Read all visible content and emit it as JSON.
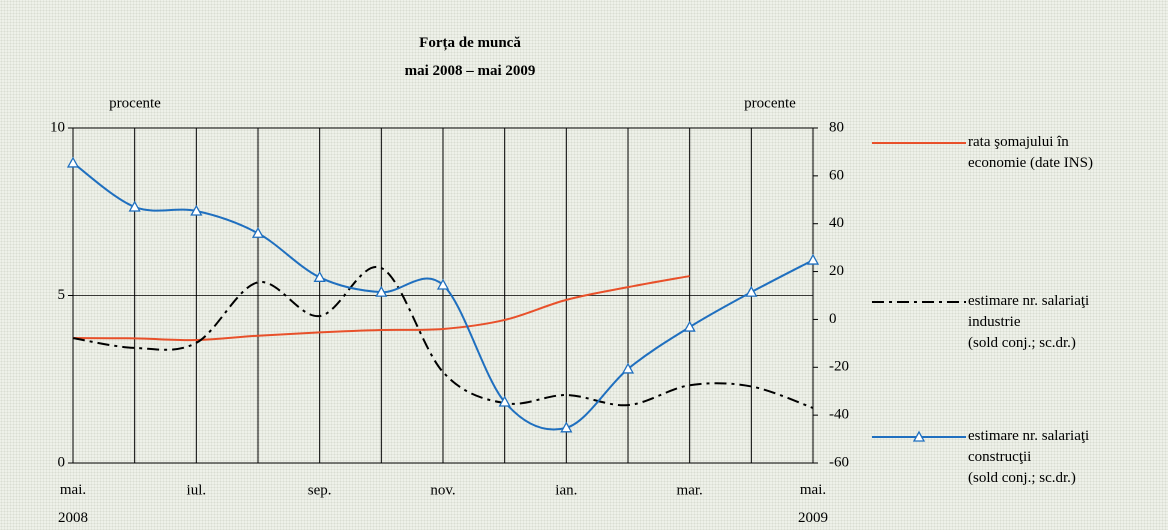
{
  "chart_data": {
    "type": "line",
    "title": "Forța de muncă\nmai 2008 – mai 2009",
    "ylabel": "procente",
    "y2label": "procente",
    "categories": [
      "mai.\n2008",
      null,
      "iul.",
      null,
      "sep.",
      null,
      "nov.",
      null,
      "ian.",
      null,
      "mar.",
      null,
      "mai.\n2009"
    ],
    "ylim": [
      0,
      10
    ],
    "yticks": [
      0,
      5,
      10
    ],
    "y2lim": [
      -60,
      80
    ],
    "y2ticks": [
      -60,
      -40,
      -20,
      0,
      20,
      40,
      60,
      80
    ],
    "grid": true,
    "series": [
      {
        "name": "rata şomajului în\neconomie (date INS)",
        "color": "#e8502a",
        "style": "solid",
        "values": [
          3.73,
          3.72,
          3.67,
          3.8,
          3.9,
          3.97,
          4.0,
          4.27,
          4.87,
          5.25,
          5.58,
          null,
          null
        ]
      },
      {
        "name": "estimare nr. salariaţi\nindustrie\n(sold conj.; sc.dr.)",
        "color": "#000000",
        "style": "dashdot",
        "axis": "y2",
        "values": [
          -7.8,
          -11.9,
          -9.8,
          15.5,
          1.4,
          21.5,
          -22,
          -35,
          -31.6,
          -35.8,
          -27.5,
          -28,
          -37
        ]
      },
      {
        "name": "estimare nr. salariaţi\nconstrucţii\n(sold conj.; sc.dr.)",
        "color": "#1f6fbf",
        "style": "solid",
        "marker": "triangle",
        "axis": "y2",
        "values": [
          65.4,
          47,
          45.3,
          36,
          17.6,
          11.4,
          14.4,
          -34.5,
          -45.3,
          -20.7,
          -3.2,
          11.4,
          24.8
        ]
      }
    ]
  }
}
